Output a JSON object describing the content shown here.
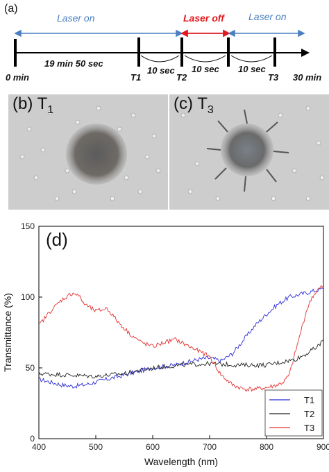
{
  "figure": {
    "panel_a": {
      "label": "(a)",
      "laser_on_left": "Laser on",
      "laser_off": "Laser off",
      "laser_on_right": "Laser on",
      "start": "0 min",
      "end": "30 min",
      "interval_1": "19 min 50 sec",
      "interval_2": "10 sec",
      "interval_3": "10 sec",
      "interval_4": "10 sec",
      "t1": "T1",
      "t2": "T2",
      "t3": "T3"
    },
    "panel_b": {
      "label": "(b) T",
      "sub": "1"
    },
    "panel_c": {
      "label": "(c) T",
      "sub": "3"
    },
    "colors": {
      "laser_on": "#4a7fc1",
      "laser_off": "#e0191f",
      "T1": "#2b2bd8",
      "T2": "#222222",
      "T3": "#e23030"
    }
  },
  "chart_data": {
    "type": "line",
    "panel_label": "(d)",
    "xlabel": "Wavelength (nm)",
    "ylabel": "Transmittance (%)",
    "xlim": [
      400,
      900
    ],
    "ylim": [
      0,
      150
    ],
    "xticks": [
      "400",
      "500",
      "600",
      "700",
      "800",
      "900"
    ],
    "yticks": [
      "0",
      "50",
      "100",
      "150"
    ],
    "legend_position": "bottom-right",
    "series": [
      {
        "name": "T1",
        "x": [
          400,
          420,
          440,
          460,
          480,
          500,
          520,
          540,
          560,
          580,
          600,
          620,
          640,
          660,
          680,
          700,
          710,
          720,
          740,
          760,
          780,
          800,
          820,
          840,
          860,
          880,
          900
        ],
        "y": [
          42,
          40,
          38,
          37,
          38,
          40,
          42,
          44,
          46,
          48,
          50,
          51,
          52,
          54,
          56,
          57,
          56,
          55,
          60,
          70,
          80,
          88,
          95,
          100,
          102,
          104,
          106
        ]
      },
      {
        "name": "T2",
        "x": [
          400,
          450,
          500,
          550,
          600,
          650,
          700,
          750,
          800,
          850,
          870,
          890,
          900
        ],
        "y": [
          46,
          45,
          44,
          46,
          50,
          52,
          53,
          52,
          52,
          56,
          60,
          65,
          70
        ]
      },
      {
        "name": "T3",
        "x": [
          400,
          420,
          440,
          460,
          470,
          480,
          500,
          520,
          540,
          560,
          580,
          600,
          620,
          640,
          660,
          680,
          700,
          720,
          740,
          760,
          780,
          800,
          820,
          830,
          840,
          850,
          860,
          870,
          880,
          890,
          900
        ],
        "y": [
          80,
          90,
          98,
          103,
          101,
          95,
          90,
          92,
          82,
          74,
          68,
          65,
          68,
          70,
          66,
          62,
          58,
          45,
          38,
          35,
          35,
          36,
          38,
          40,
          45,
          60,
          75,
          90,
          100,
          105,
          108
        ]
      }
    ]
  }
}
